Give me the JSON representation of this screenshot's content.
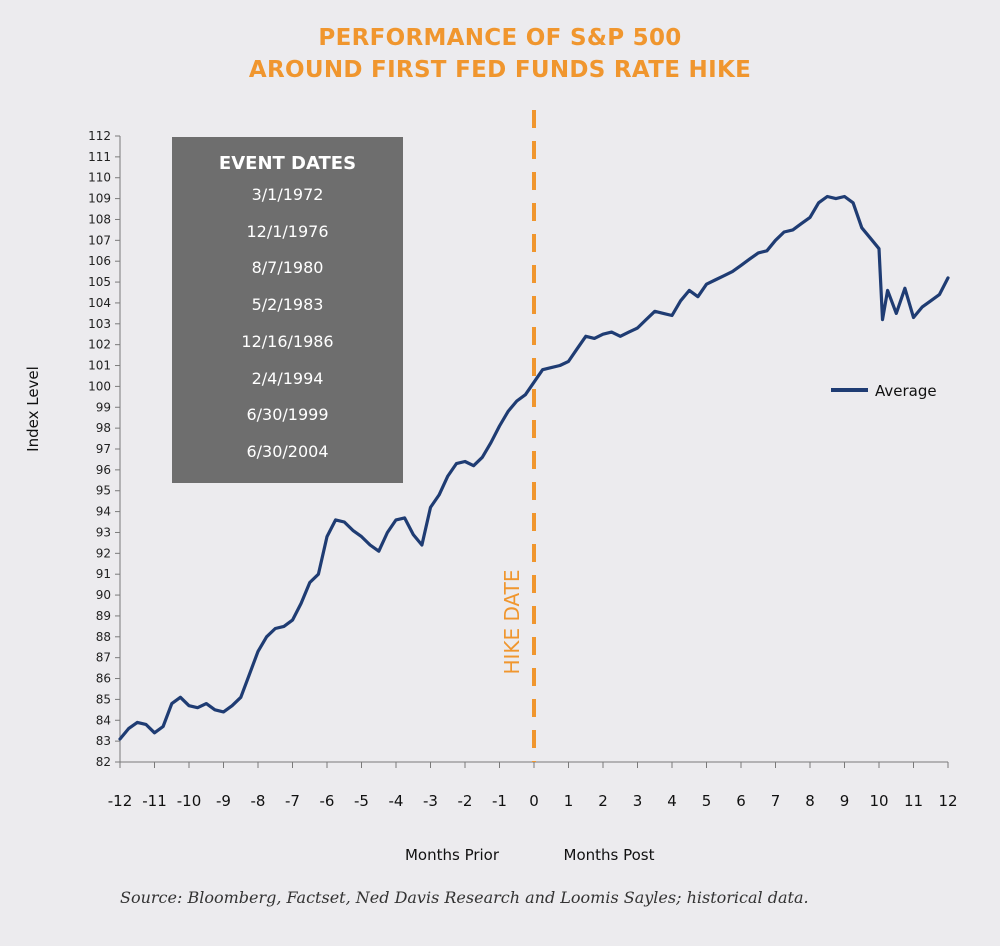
{
  "title_line1": "PERFORMANCE OF S&P 500",
  "title_line2": "AROUND FIRST FED FUNDS RATE HIKE",
  "event_box": {
    "heading": "EVENT DATES",
    "dates": [
      "3/1/1972",
      "12/1/1976",
      "8/7/1980",
      "5/2/1983",
      "12/16/1986",
      "2/4/1994",
      "6/30/1999",
      "6/30/2004"
    ]
  },
  "hike_label": "HIKE DATE",
  "months_prior_label": "Months Prior",
  "months_post_label": "Months Post",
  "source": "Source: Bloomberg, Factset, Ned Davis Research and Loomis Sayles; historical data.",
  "colors": {
    "line": "#1F3C73",
    "accent": "#F0962E",
    "box": "#6E6E6E",
    "background": "#ECEBEE"
  },
  "chart_data": {
    "type": "line",
    "ylabel": "Index Level",
    "ylim": [
      82,
      112
    ],
    "xlim": [
      -12,
      12
    ],
    "yticks": [
      82,
      83,
      84,
      85,
      86,
      87,
      88,
      89,
      90,
      91,
      92,
      93,
      94,
      95,
      96,
      97,
      98,
      99,
      100,
      101,
      102,
      103,
      104,
      105,
      106,
      107,
      108,
      109,
      110,
      111,
      112
    ],
    "xticks": [
      -12,
      -11,
      -10,
      -9,
      -8,
      -7,
      -6,
      -5,
      -4,
      -3,
      -2,
      -1,
      0,
      1,
      2,
      3,
      4,
      5,
      6,
      7,
      8,
      9,
      10,
      11,
      12
    ],
    "grid": false,
    "legend_position": "right",
    "vertical_marker": {
      "x": 0,
      "style": "dashed"
    },
    "series": [
      {
        "name": "Average",
        "x": [
          -12,
          -11.75,
          -11.5,
          -11.25,
          -11,
          -10.75,
          -10.5,
          -10.25,
          -10,
          -9.75,
          -9.5,
          -9.25,
          -9,
          -8.75,
          -8.5,
          -8.25,
          -8,
          -7.75,
          -7.5,
          -7.25,
          -7,
          -6.75,
          -6.5,
          -6.25,
          -6,
          -5.75,
          -5.5,
          -5.25,
          -5,
          -4.75,
          -4.5,
          -4.25,
          -4,
          -3.75,
          -3.5,
          -3.25,
          -3,
          -2.75,
          -2.5,
          -2.25,
          -2,
          -1.75,
          -1.5,
          -1.25,
          -1,
          -0.75,
          -0.5,
          -0.25,
          0,
          0.25,
          0.5,
          0.75,
          1,
          1.25,
          1.5,
          1.75,
          2,
          2.25,
          2.5,
          2.75,
          3,
          3.25,
          3.5,
          3.75,
          4,
          4.25,
          4.5,
          4.75,
          5,
          5.25,
          5.5,
          5.75,
          6,
          6.25,
          6.5,
          6.75,
          7,
          7.25,
          7.5,
          7.75,
          8,
          8.25,
          8.5,
          8.75,
          9,
          9.25,
          9.5,
          9.75,
          10,
          10.1,
          10.25,
          10.5,
          10.75,
          11,
          11.25,
          11.5,
          11.75,
          12
        ],
        "values": [
          83.1,
          83.6,
          83.9,
          83.8,
          83.4,
          83.7,
          84.8,
          85.1,
          84.7,
          84.6,
          84.8,
          84.5,
          84.4,
          84.7,
          85.1,
          86.2,
          87.3,
          88.0,
          88.4,
          88.5,
          88.8,
          89.6,
          90.6,
          91.0,
          92.8,
          93.6,
          93.5,
          93.1,
          92.8,
          92.4,
          92.1,
          93.0,
          93.6,
          93.7,
          92.9,
          92.4,
          94.2,
          94.8,
          95.7,
          96.3,
          96.4,
          96.2,
          96.6,
          97.3,
          98.1,
          98.8,
          99.3,
          99.6,
          100.2,
          100.8,
          100.9,
          101.0,
          101.2,
          101.8,
          102.4,
          102.3,
          102.5,
          102.6,
          102.4,
          102.6,
          102.8,
          103.2,
          103.6,
          103.5,
          103.4,
          104.1,
          104.6,
          104.3,
          104.9,
          105.1,
          105.3,
          105.5,
          105.8,
          106.1,
          106.4,
          106.5,
          107.0,
          107.4,
          107.5,
          107.8,
          108.1,
          108.8,
          109.1,
          109.0,
          109.1,
          108.8,
          107.6,
          107.1,
          106.6,
          103.2,
          104.6,
          103.5,
          104.7,
          103.3,
          103.8,
          104.1,
          104.4,
          105.2
        ]
      }
    ]
  }
}
